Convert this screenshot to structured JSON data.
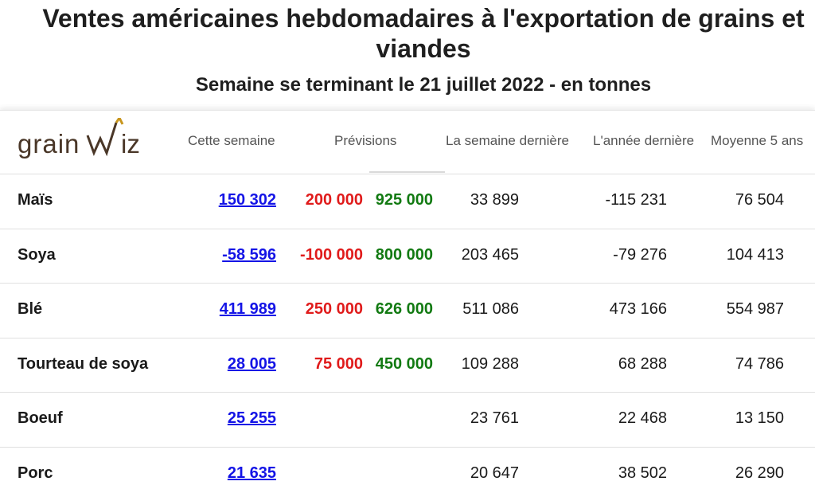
{
  "title": "Ventes américaines hebdomadaires à l'exportation de grains et viandes",
  "subtitle": "Semaine se terminant le 21 juillet 2022 - en tonnes",
  "logo": {
    "text": "grainwiz",
    "prefix": "grain",
    "suffix": "iz"
  },
  "headers": {
    "this_week": "Cette semaine",
    "forecast": "Prévisions",
    "last_week": "La semaine dernière",
    "last_year": "L'année dernière",
    "avg5": "Moyenne 5 ans"
  },
  "rows": [
    {
      "label": "Maïs",
      "this_week": "150 302",
      "fc_low": "200 000",
      "fc_high": "925 000",
      "last_week": "33 899",
      "last_year": "-115 231",
      "avg5": "76 504"
    },
    {
      "label": "Soya",
      "this_week": "-58 596",
      "fc_low": "-100 000",
      "fc_high": "800 000",
      "last_week": "203 465",
      "last_year": "-79 276",
      "avg5": "104 413"
    },
    {
      "label": "Blé",
      "this_week": "411 989",
      "fc_low": "250 000",
      "fc_high": "626 000",
      "last_week": "511 086",
      "last_year": "473 166",
      "avg5": "554 987"
    },
    {
      "label": "Tourteau de soya",
      "this_week": "28 005",
      "fc_low": "75 000",
      "fc_high": "450 000",
      "last_week": "109 288",
      "last_year": "68 288",
      "avg5": "74 786"
    },
    {
      "label": "Boeuf",
      "this_week": "25 255",
      "fc_low": "",
      "fc_high": "",
      "last_week": "23 761",
      "last_year": "22 468",
      "avg5": "13 150"
    },
    {
      "label": "Porc",
      "this_week": "21 635",
      "fc_low": "",
      "fc_high": "",
      "last_week": "20 647",
      "last_year": "38 502",
      "avg5": "26 290"
    }
  ],
  "colors": {
    "link": "#1414e6",
    "forecast_low": "#e01b1b",
    "forecast_high": "#127a12",
    "logo": "#4a3728",
    "logo_accent": "#c8961e"
  }
}
